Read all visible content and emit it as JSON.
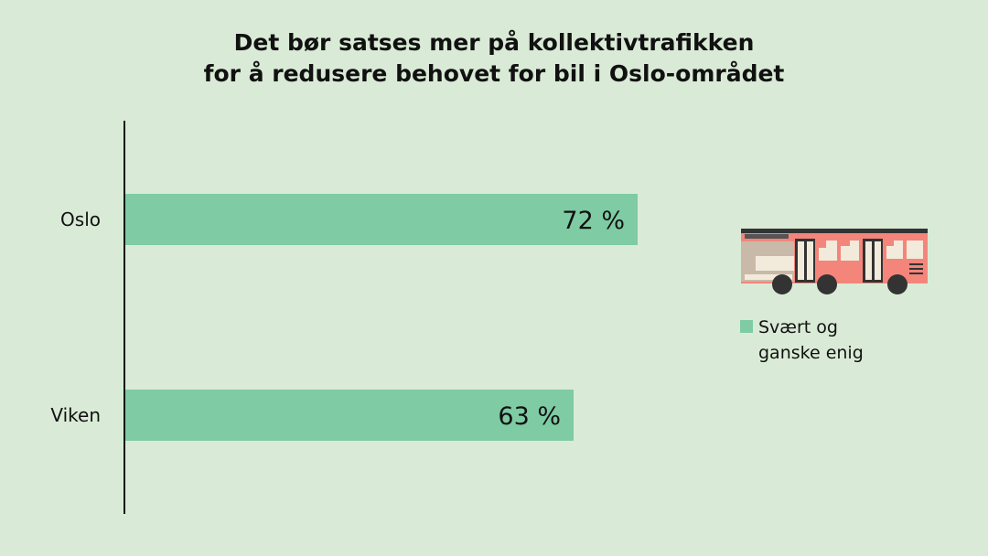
{
  "title": {
    "line1": "Det bør satses mer på kollektivtrafikken",
    "line2": "for å redusere behovet for bil i Oslo-området"
  },
  "colors": {
    "background": "#d9ebd6",
    "bar": "#7ecba4",
    "axis": "#111111",
    "bus_body": "#f4857b",
    "bus_dark": "#333333"
  },
  "icon": "bus-icon",
  "chart_data": {
    "type": "bar",
    "orientation": "horizontal",
    "title": "Det bør satses mer på kollektivtrafikken for å redusere behovet for bil i Oslo-området",
    "categories": [
      "Oslo",
      "Viken"
    ],
    "series": [
      {
        "name": "Svært og ganske enig",
        "values": [
          72,
          63
        ],
        "labels": [
          "72 %",
          "63 %"
        ]
      }
    ],
    "xlim": [
      0,
      100
    ],
    "xlabel": "",
    "ylabel": "",
    "grid": false,
    "legend": "right"
  },
  "legend": {
    "line1": "Svært og",
    "line2": "ganske enig"
  }
}
